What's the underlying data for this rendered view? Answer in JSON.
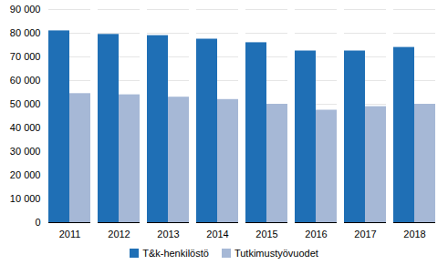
{
  "chart_data": {
    "type": "bar",
    "categories": [
      "2011",
      "2012",
      "2013",
      "2014",
      "2015",
      "2016",
      "2017",
      "2018"
    ],
    "series": [
      {
        "name": "T&k-henkilöstö",
        "color": "#1f6fb5",
        "values": [
          81000,
          79500,
          79000,
          77500,
          76000,
          72500,
          72500,
          74000
        ]
      },
      {
        "name": "Tutkimustyövuodet",
        "color": "#a6b8d6",
        "values": [
          54500,
          54000,
          53000,
          52000,
          50000,
          47500,
          49000,
          50000
        ]
      }
    ],
    "ylim": [
      0,
      90000
    ],
    "yticks": [
      0,
      {
        "value": 10000,
        "label": "10 000"
      },
      {
        "value": 20000,
        "label": "20 000"
      },
      {
        "value": 30000,
        "label": "30 000"
      },
      {
        "value": 40000,
        "label": "40 000"
      },
      {
        "value": 50000,
        "label": "50 000"
      },
      {
        "value": 60000,
        "label": "60 000"
      },
      {
        "value": 70000,
        "label": "70 000"
      },
      {
        "value": 80000,
        "label": "80 000"
      },
      {
        "value": 90000,
        "label": "90 000"
      }
    ],
    "grid": true,
    "legend": "bottom"
  }
}
